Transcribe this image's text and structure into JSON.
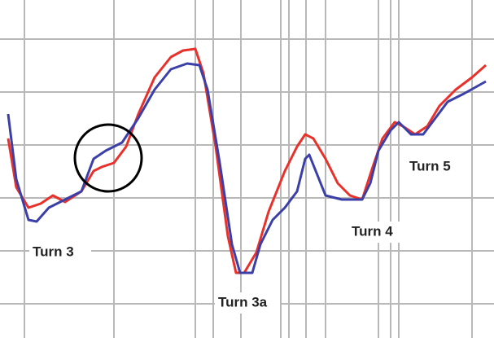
{
  "chart_data": {
    "type": "line",
    "annotations": [
      "Turn 3",
      "Turn 3a",
      "Turn 4",
      "Turn 5"
    ],
    "xlim": [
      0,
      121.4
    ],
    "ylim": [
      0,
      83
    ],
    "series": [
      {
        "name": null,
        "color": "#e8312a",
        "x": [
          2,
          4,
          7,
          10,
          13,
          16,
          20,
          23,
          25,
          28,
          31,
          34,
          38,
          42,
          45,
          48,
          50,
          53,
          56,
          58,
          60,
          63,
          66,
          70,
          73,
          75,
          77,
          80,
          83,
          86,
          89,
          91.6,
          94,
          97,
          99,
          102,
          105,
          108,
          112,
          116,
          119.4
        ],
        "values": [
          49,
          37,
          32,
          33,
          35,
          33.4,
          36,
          41,
          42,
          43,
          47,
          55,
          64,
          69,
          70.6,
          71,
          65,
          47,
          25,
          16,
          16,
          21,
          31,
          41,
          47,
          50,
          49,
          44,
          38,
          35,
          34,
          42,
          49,
          53,
          52,
          50,
          52,
          57,
          61,
          64,
          67
        ]
      },
      {
        "name": null,
        "color": "#3b3fa8",
        "x": [
          2,
          4,
          7,
          9,
          12,
          16,
          20,
          23,
          26,
          30,
          34,
          38,
          42,
          46,
          49,
          51,
          54,
          57,
          59,
          62,
          64,
          67,
          70,
          73,
          75,
          76,
          78,
          80,
          84,
          89,
          91,
          93,
          96,
          98,
          101,
          104,
          107,
          110,
          114,
          119.4
        ],
        "values": [
          55,
          39,
          29,
          28.6,
          32,
          34,
          36,
          44,
          46,
          48,
          54,
          61,
          66,
          67.4,
          67,
          61,
          43,
          23,
          16,
          16,
          23,
          29,
          32,
          36,
          44,
          45,
          40,
          35,
          34,
          34,
          38,
          46,
          51,
          53,
          50,
          50,
          54,
          58,
          60,
          63
        ]
      }
    ]
  }
}
